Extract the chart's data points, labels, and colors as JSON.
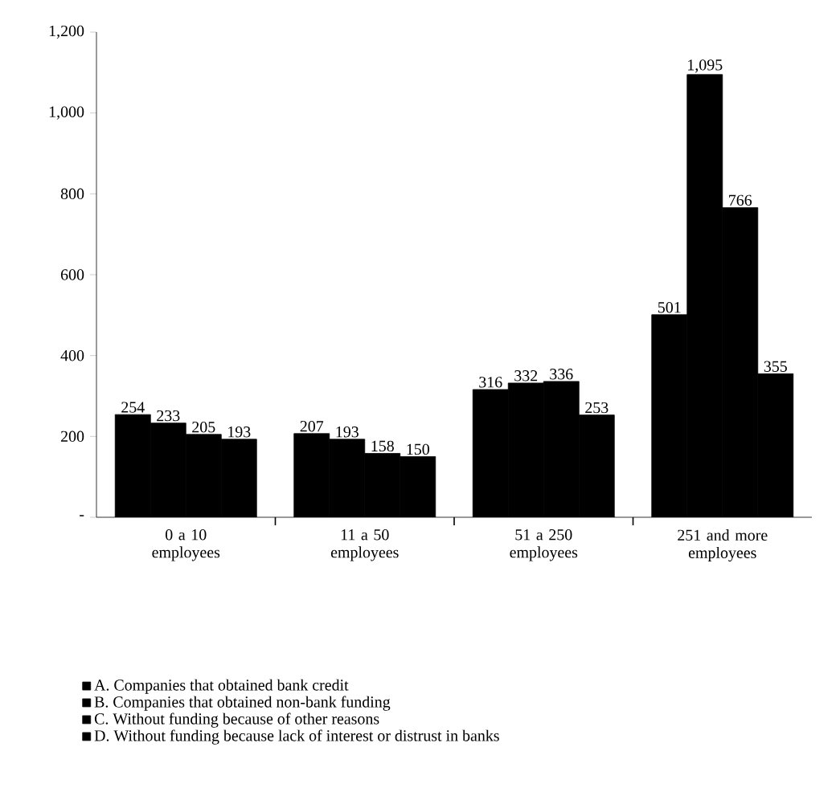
{
  "chart_data": {
    "type": "bar",
    "categories": [
      "0 a 10 employees",
      "11 a 50 employees",
      "51 a 250 employees",
      "251 and more employees"
    ],
    "series": [
      {
        "name": "A. Companies that obtained bank credit",
        "color": "#000000",
        "values": [
          254,
          207,
          316,
          501
        ],
        "value_labels": [
          "254",
          "207",
          "316",
          "501"
        ]
      },
      {
        "name": "B. Companies that obtained non-bank funding",
        "color": "#000000",
        "values": [
          233,
          193,
          332,
          1095
        ],
        "value_labels": [
          "233",
          "193",
          "332",
          "1,095"
        ]
      },
      {
        "name": "C. Without funding because of other reasons",
        "color": "#000000",
        "values": [
          205,
          158,
          336,
          766
        ],
        "value_labels": [
          "205",
          "158",
          "336",
          "766"
        ]
      },
      {
        "name": "D. Without funding because lack of interest or distrust in banks",
        "color": "#000000",
        "values": [
          193,
          150,
          253,
          355
        ],
        "value_labels": [
          "193",
          "150",
          "253",
          "355"
        ]
      }
    ],
    "ylim": [
      0,
      1200
    ],
    "yticks": [
      {
        "value": 0,
        "label": "-"
      },
      200,
      400,
      600,
      800,
      {
        "value": 1000,
        "label": "1,000"
      },
      {
        "value": 1200,
        "label": "1,200"
      }
    ],
    "legend": "bottom"
  }
}
